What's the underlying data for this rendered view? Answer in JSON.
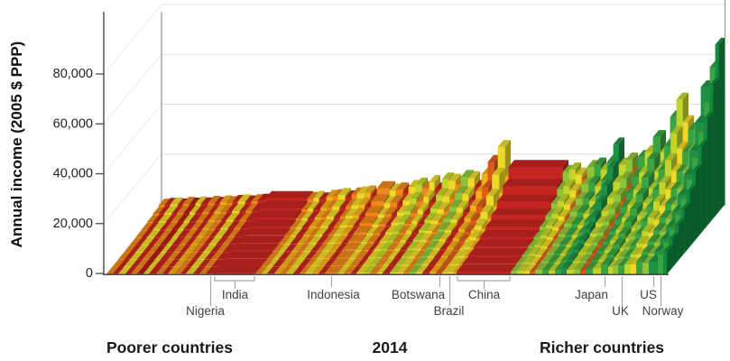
{
  "chart_data": {
    "type": "bar",
    "variant": "3d-skyscraper-income-distribution",
    "year": "2014",
    "y_axis": {
      "label": "Annual income (2005 $ PPP)",
      "ticks": [
        {
          "v": 0,
          "t": "0"
        },
        {
          "v": 20000,
          "t": "20,000"
        },
        {
          "v": 40000,
          "t": "40,000"
        },
        {
          "v": 60000,
          "t": "60,000"
        },
        {
          "v": 80000,
          "t": "80,000"
        }
      ],
      "ylim": [
        0,
        80000
      ]
    },
    "footer": {
      "left": "Poorer countries",
      "center": "2014",
      "right": "Richer countries"
    },
    "deciles_per_country": 10,
    "palette": {
      "rd": "#c42520",
      "dr": "#b21d16",
      "ro": "#dd5a1b",
      "or": "#ee861b",
      "yo": "#f5ae1b",
      "yl": "#eed829",
      "yg": "#c3d52a",
      "lg": "#8ec43a",
      "gn": "#3aa442",
      "dg": "#1d9247",
      "xg": "#0f8a40"
    },
    "countries": [
      {
        "w": 7,
        "c": "or",
        "lo": 200,
        "hi": 2500
      },
      {
        "w": 6,
        "c": "rd",
        "lo": 220,
        "hi": 2800
      },
      {
        "w": 8,
        "c": "yl",
        "lo": 250,
        "hi": 3000
      },
      {
        "w": 6,
        "c": "rd",
        "lo": 200,
        "hi": 2600
      },
      {
        "w": 7,
        "c": "or",
        "lo": 240,
        "hi": 3200
      },
      {
        "w": 7,
        "c": "dr",
        "lo": 220,
        "hi": 2900
      },
      {
        "w": 6,
        "c": "yl",
        "lo": 260,
        "hi": 3400
      },
      {
        "w": 8,
        "c": "rd",
        "lo": 230,
        "hi": 3000
      },
      {
        "w": 7,
        "c": "or",
        "lo": 260,
        "hi": 3600
      },
      {
        "w": 6,
        "c": "rd",
        "lo": 240,
        "hi": 3200
      },
      {
        "w": 7,
        "c": "yo",
        "lo": 280,
        "hi": 3800
      },
      {
        "w": 7,
        "c": "or",
        "lo": 260,
        "hi": 3500
      },
      {
        "w": 6,
        "c": "rd",
        "lo": 250,
        "hi": 4000
      },
      {
        "w": 8,
        "c": "yl",
        "lo": 300,
        "hi": 4200
      },
      {
        "w": 7,
        "c": "rd",
        "lo": 260,
        "hi": 3800
      },
      {
        "w": 7,
        "c": "or",
        "lo": 300,
        "hi": 4300
      },
      {
        "name": "Nigeria",
        "label": {
          "row": 2,
          "tick": "long",
          "dx": -6
        },
        "w": 9,
        "c": "rd",
        "lo": 250,
        "hi": 4500
      },
      {
        "name": "India",
        "label": {
          "row": 1,
          "bracket": true
        },
        "w": 46,
        "c": "rd",
        "lo": 500,
        "hi": 5500
      },
      {
        "w": 7,
        "c": "or",
        "lo": 300,
        "hi": 5200
      },
      {
        "w": 6,
        "c": "yl",
        "lo": 350,
        "hi": 5600
      },
      {
        "w": 8,
        "c": "rd",
        "lo": 300,
        "hi": 5000
      },
      {
        "w": 7,
        "c": "yo",
        "lo": 400,
        "hi": 6000
      },
      {
        "w": 6,
        "c": "or",
        "lo": 350,
        "hi": 6300
      },
      {
        "w": 8,
        "c": "yl",
        "lo": 400,
        "hi": 6800
      },
      {
        "w": 7,
        "c": "rd",
        "lo": 350,
        "hi": 5800
      },
      {
        "w": 6,
        "c": "or",
        "lo": 400,
        "hi": 7000
      },
      {
        "w": 8,
        "c": "yl",
        "lo": 450,
        "hi": 7400
      },
      {
        "w": 7,
        "c": "yo",
        "lo": 500,
        "hi": 7800
      },
      {
        "w": 7,
        "c": "rd",
        "lo": 400,
        "hi": 6500
      },
      {
        "name": "Indonesia",
        "label": {
          "row": 1,
          "tick": "short",
          "dx": 2
        },
        "w": 14,
        "c": "or",
        "lo": 600,
        "hi": 9500
      },
      {
        "w": 7,
        "c": "yl",
        "lo": 450,
        "hi": 8500
      },
      {
        "w": 8,
        "c": "or",
        "lo": 500,
        "hi": 9000
      },
      {
        "w": 6,
        "c": "rd",
        "lo": 400,
        "hi": 8000
      },
      {
        "w": 8,
        "c": "yl",
        "lo": 600,
        "hi": 10000
      },
      {
        "w": 7,
        "c": "yg",
        "lo": 700,
        "hi": 11000
      },
      {
        "w": 8,
        "c": "or",
        "lo": 500,
        "hi": 9500
      },
      {
        "w": 6,
        "c": "yl",
        "lo": 700,
        "hi": 12000
      },
      {
        "w": 8,
        "c": "rd",
        "lo": 500,
        "hi": 9000
      },
      {
        "w": 7,
        "c": "yg",
        "lo": 800,
        "hi": 13000
      },
      {
        "w": 8,
        "c": "yl",
        "lo": 700,
        "hi": 12500
      },
      {
        "w": 6,
        "c": "or",
        "lo": 600,
        "hi": 11000
      },
      {
        "w": 8,
        "c": "lg",
        "lo": 900,
        "hi": 14000
      },
      {
        "w": 7,
        "c": "yl",
        "lo": 800,
        "hi": 13500
      },
      {
        "w": 8,
        "c": "rd",
        "lo": 600,
        "hi": 10000
      },
      {
        "w": 7,
        "c": "yo",
        "lo": 900,
        "hi": 15000
      },
      {
        "name": "Botswana",
        "label": {
          "row": 1,
          "tick": "short",
          "dx": -24
        },
        "w": 7,
        "c": "ro",
        "lo": 300,
        "hi": 20000
      },
      {
        "w": 4,
        "c": "yl",
        "lo": 700,
        "hi": 13000
      },
      {
        "name": "Brazil",
        "label": {
          "row": 2,
          "tick": "long",
          "dx": -1
        },
        "w": 8,
        "c": "yl",
        "lo": 800,
        "hi": 26000
      },
      {
        "w": 4,
        "c": "yo",
        "lo": 900,
        "hi": 14000
      },
      {
        "name": "China",
        "label": {
          "row": 1,
          "bracket": true
        },
        "w": 60,
        "c": "rd",
        "lo": 1100,
        "hi": 18000
      },
      {
        "w": 7,
        "c": "lg",
        "lo": 1200,
        "hi": 16000
      },
      {
        "w": 7,
        "c": "yg",
        "lo": 1500,
        "hi": 17000
      },
      {
        "w": 7,
        "c": "yl",
        "lo": 1200,
        "hi": 15000
      },
      {
        "w": 6,
        "c": "ro",
        "lo": 1000,
        "hi": 13000
      },
      {
        "w": 8,
        "c": "lg",
        "lo": 1800,
        "hi": 18000
      },
      {
        "w": 7,
        "c": "gn",
        "lo": 1600,
        "hi": 19000
      },
      {
        "w": 7,
        "c": "yg",
        "lo": 1500,
        "hi": 17000
      },
      {
        "w": 7,
        "c": "gn",
        "lo": 2000,
        "hi": 20000
      },
      {
        "w": 6,
        "c": "dg",
        "lo": 2500,
        "hi": 27000
      },
      {
        "w": 8,
        "c": "yg",
        "lo": 1800,
        "hi": 19000
      },
      {
        "w": 7,
        "c": "lg",
        "lo": 2000,
        "hi": 21000
      },
      {
        "w": 6,
        "c": "ro",
        "lo": 1500,
        "hi": 16000
      },
      {
        "w": 8,
        "c": "gn",
        "lo": 2200,
        "hi": 22000
      },
      {
        "w": 9,
        "c": "yg",
        "lo": 2400,
        "hi": 24000
      },
      {
        "name": "Japan",
        "label": {
          "row": 1,
          "tick": "short",
          "dx": -15
        },
        "w": 8,
        "c": "gn",
        "lo": 4000,
        "hi": 30000
      },
      {
        "w": 5,
        "c": "yg",
        "lo": 3000,
        "hi": 24000
      },
      {
        "w": 6,
        "c": "lg",
        "lo": 3500,
        "hi": 27000
      },
      {
        "name": "UK",
        "label": {
          "row": 2,
          "tick": "long",
          "dx": -2
        },
        "w": 7,
        "c": "gn",
        "lo": 3500,
        "hi": 38000
      },
      {
        "w": 7,
        "c": "yg",
        "lo": 4000,
        "hi": 45000
      },
      {
        "w": 6,
        "c": "yl",
        "lo": 4000,
        "hi": 36000
      },
      {
        "w": 7,
        "c": "gn",
        "lo": 5000,
        "hi": 33000
      },
      {
        "w": 7,
        "c": "lg",
        "lo": 4500,
        "hi": 35000
      },
      {
        "name": "US",
        "label": {
          "row": 1,
          "tick": "short",
          "dx": -6
        },
        "w": 10,
        "c": "dg",
        "lo": 5000,
        "hi": 50000
      },
      {
        "name": "Norway",
        "label": {
          "row": 2,
          "tick": "long",
          "dx": 2
        },
        "w": 6,
        "c": "gn",
        "lo": 8000,
        "hi": 58000
      },
      {
        "w": 4,
        "c": "xg",
        "lo": 9000,
        "hi": 67000
      }
    ]
  }
}
